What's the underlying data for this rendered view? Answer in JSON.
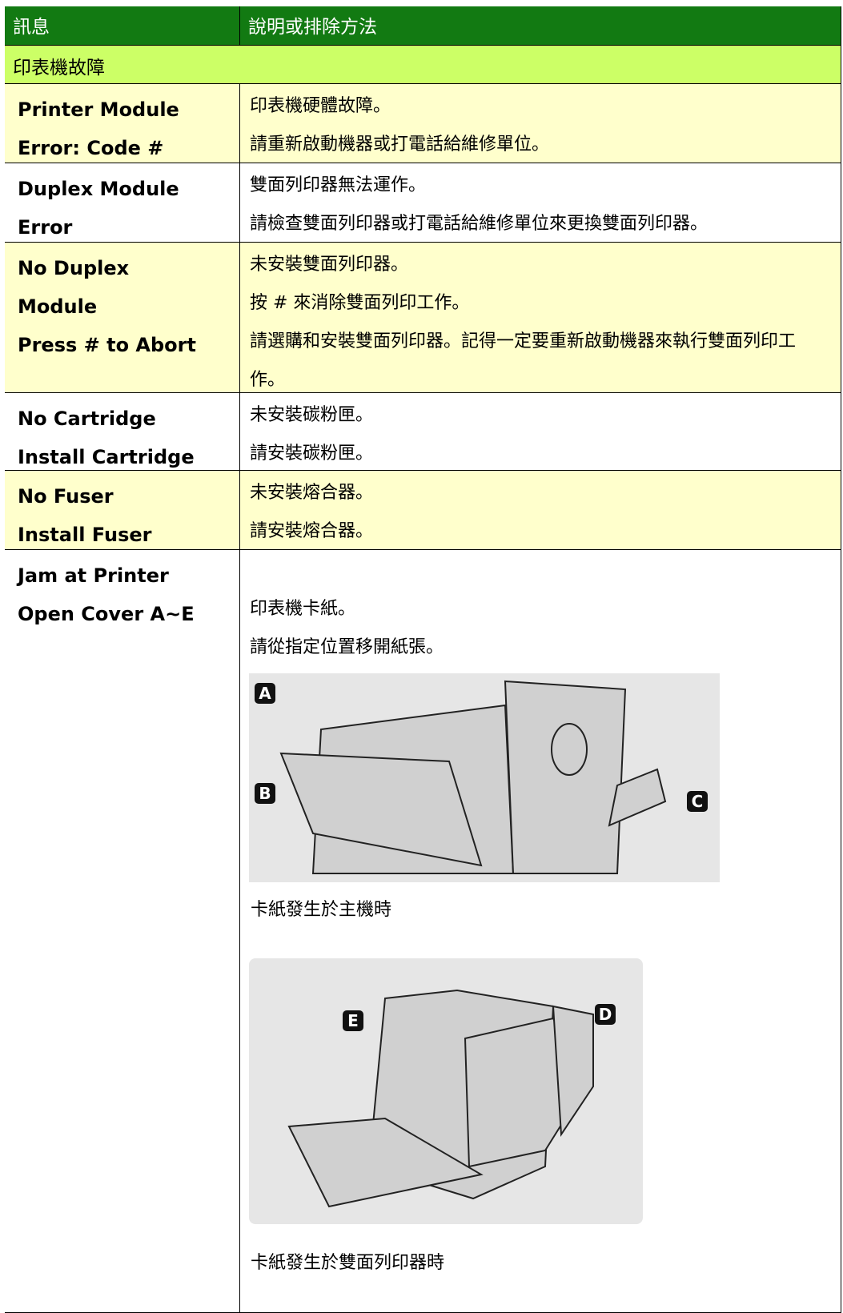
{
  "table": {
    "header": [
      "訊息",
      "說明或排除方法"
    ],
    "section": "印表機故障",
    "rows": [
      {
        "message": [
          "Printer Module",
          "Error: Code #"
        ],
        "description": [
          "印表機硬體故障。",
          "請重新啟動機器或打電話給維修單位。"
        ]
      },
      {
        "message": [
          "Duplex Module",
          "Error"
        ],
        "description": [
          "雙面列印器無法運作。",
          "請檢查雙面列印器或打電話給維修單位來更換雙面列印器。"
        ]
      },
      {
        "message": [
          "No Duplex",
          "Module",
          "Press # to Abort"
        ],
        "description": [
          "未安裝雙面列印器。",
          "按 # 來消除雙面列印工作。",
          "請選購和安裝雙面列印器。記得一定要重新啟動機器來執行雙面列印工作。"
        ]
      },
      {
        "message": [
          "No Cartridge",
          "Install Cartridge"
        ],
        "description": [
          "未安裝碳粉匣。",
          "請安裝碳粉匣。"
        ]
      },
      {
        "message": [
          "No Fuser",
          "Install Fuser"
        ],
        "description": [
          "未安裝熔合器。",
          "請安裝熔合器。"
        ]
      },
      {
        "message": [
          "Jam at Printer",
          "Open Cover A~E"
        ],
        "description": [
          "印表機卡紙。",
          "請從指定位置移開紙張。"
        ],
        "figures": [
          {
            "labels": [
              "A",
              "B",
              "C"
            ],
            "caption": "卡紙發生於主機時"
          },
          {
            "labels": [
              "E",
              "D"
            ],
            "caption": "卡紙發生於雙面列印器時"
          }
        ]
      }
    ]
  }
}
